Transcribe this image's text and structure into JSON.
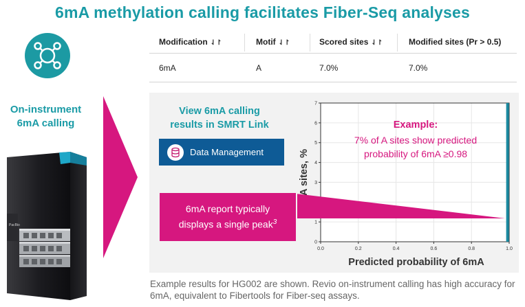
{
  "title": "6mA methylation calling facilitates Fiber-Seq analyses",
  "left": {
    "label_line1": "On-instrument",
    "label_line2": "6mA calling",
    "instrument_brand": "PacBio",
    "icon": "molecule-network-icon"
  },
  "table": {
    "headers": [
      {
        "label": "Modification",
        "sort": "⇃↾"
      },
      {
        "label": "Motif",
        "sort": "⇃↾"
      },
      {
        "label": "Scored sites",
        "sort": "⇃↾"
      },
      {
        "label": "Modified sites (Pr > 0.5)",
        "sort": ""
      }
    ],
    "rows": [
      {
        "modification": "6mA",
        "motif": "A",
        "scored_sites": "7.0%",
        "modified_sites": "7.0%"
      }
    ]
  },
  "panel": {
    "view_line1": "View 6mA calling",
    "view_line2": "results in SMRT Link",
    "button_label": "Data Management",
    "button_icon": "database-icon",
    "callout_line1": "6mA report typically",
    "callout_line2": "displays a single peak",
    "callout_sup": "3"
  },
  "chart_data": {
    "type": "bar",
    "title": "",
    "xlabel": "Predicted probability of 6mA",
    "ylabel": "A sites, %",
    "xlim": [
      0.0,
      1.0
    ],
    "ylim": [
      0,
      7
    ],
    "x_ticks": [
      "0.0",
      "0.2",
      "0.4",
      "0.6",
      "0.8",
      "1.0"
    ],
    "y_ticks": [
      "0",
      "1",
      "2",
      "3",
      "4",
      "5",
      "6",
      "7"
    ],
    "grid": true,
    "bars": [
      {
        "x": 0.995,
        "value": 7.0
      }
    ],
    "bar_color": "#1a8aa0",
    "annotation_title": "Example:",
    "annotation_line1": "7% of A sites show predicted",
    "annotation_line2": "probability of 6mA ≥0.98"
  },
  "caption": "Example results for HG002 are shown.  Revio on-instrument calling has high accuracy for 6mA, equivalent to Fibertools for Fiber-seq assays.",
  "colors": {
    "teal": "#1a9ba6",
    "magenta": "#d6177f",
    "navy": "#0e5b96"
  }
}
